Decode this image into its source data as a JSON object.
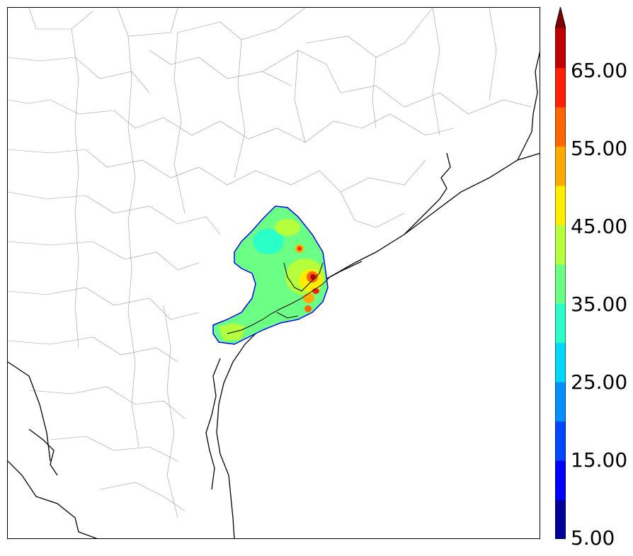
{
  "colorbar": {
    "labels": [
      "65.00",
      "55.00",
      "45.00",
      "35.00",
      "25.00",
      "15.00",
      "5.00"
    ],
    "colors": [
      "#00009a",
      "#0000ff",
      "#0045ff",
      "#0090ff",
      "#00d8ff",
      "#2bffc8",
      "#6cff86",
      "#b5ff3c",
      "#ffed00",
      "#ffaa00",
      "#ff6600",
      "#ff2000",
      "#c00000",
      "#800000"
    ]
  }
}
